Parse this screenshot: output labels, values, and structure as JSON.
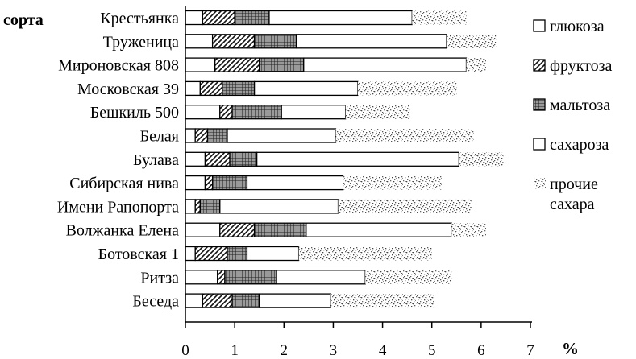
{
  "chart_data": {
    "type": "bar",
    "orientation": "horizontal",
    "stacked": true,
    "title": "",
    "ylabel": "сорта",
    "xlabel": "",
    "x_unit": "%",
    "xlim": [
      0,
      7
    ],
    "x_ticks": [
      "0",
      "1",
      "2",
      "3",
      "4",
      "5",
      "6",
      "7"
    ],
    "grid": false,
    "legend_position": "right",
    "categories": [
      "Крестьянка",
      "Труженица",
      "Мироновская 808",
      "Московская 39",
      "Бешкиль 500",
      "Белая",
      "Булава",
      "Сибирская нива",
      "Имени Рапопорта",
      "Волжанка Елена",
      "Ботовская 1",
      "Ритза",
      "Беседа"
    ],
    "series": [
      {
        "name": "глюкоза",
        "pattern": "blank",
        "values": [
          0.35,
          0.55,
          0.6,
          0.3,
          0.7,
          0.2,
          0.4,
          0.4,
          0.2,
          0.7,
          0.2,
          0.65,
          0.35
        ]
      },
      {
        "name": "фруктоза",
        "pattern": "hatch",
        "values": [
          0.65,
          0.85,
          0.9,
          0.45,
          0.25,
          0.25,
          0.5,
          0.15,
          0.1,
          0.7,
          0.65,
          0.15,
          0.6
        ]
      },
      {
        "name": "мальтоза",
        "pattern": "grid",
        "values": [
          0.7,
          0.85,
          0.9,
          0.65,
          1.0,
          0.4,
          0.55,
          0.7,
          0.4,
          1.05,
          0.4,
          1.05,
          0.55
        ]
      },
      {
        "name": "сахароза",
        "pattern": "blank",
        "values": [
          2.9,
          3.05,
          3.3,
          2.1,
          1.3,
          2.2,
          4.1,
          1.95,
          2.4,
          2.95,
          1.05,
          1.8,
          1.45
        ]
      },
      {
        "name": "прочие сахара",
        "pattern": "stipple",
        "values": [
          1.1,
          1.0,
          0.4,
          2.0,
          1.3,
          2.8,
          0.9,
          2.0,
          2.7,
          0.7,
          2.7,
          1.75,
          2.1
        ]
      }
    ]
  }
}
